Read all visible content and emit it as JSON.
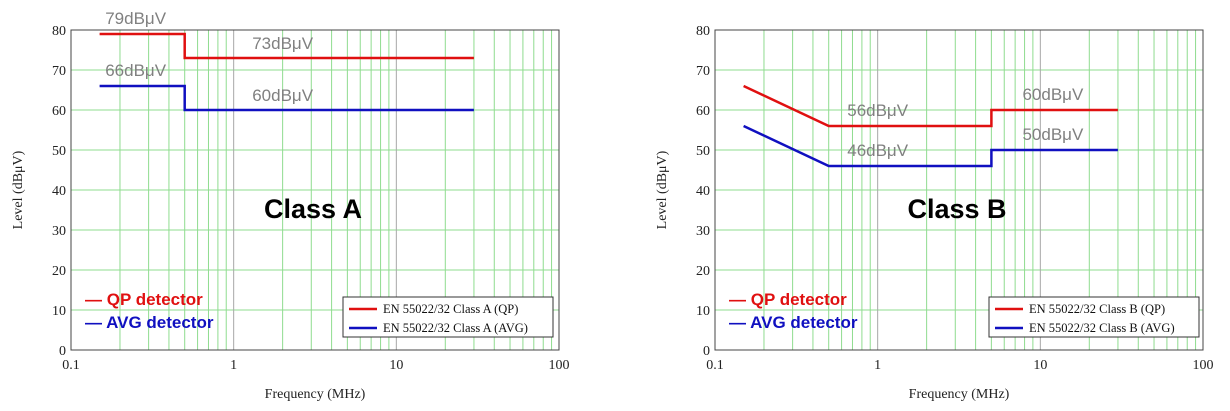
{
  "chart_data": [
    {
      "type": "line",
      "title": "",
      "big_label": "Class A",
      "xlabel": "Frequency (MHz)",
      "ylabel": "Level (dBμV)",
      "xscale": "log",
      "xlim": [
        0.1,
        100
      ],
      "ylim": [
        0,
        80
      ],
      "xticks": [
        "0.1",
        "1",
        "10",
        "100"
      ],
      "yticks": [
        "0",
        "10",
        "20",
        "30",
        "40",
        "50",
        "60",
        "70",
        "80"
      ],
      "grid": true,
      "legend_position": "bottom-right",
      "series": [
        {
          "name": "EN 55022/32 Class A (QP)",
          "color": "#e01010",
          "points": [
            [
              0.15,
              79
            ],
            [
              0.5,
              79
            ],
            [
              0.5,
              73
            ],
            [
              30,
              73
            ]
          ]
        },
        {
          "name": "EN 55022/32 Class A (AVG)",
          "color": "#1010c0",
          "points": [
            [
              0.15,
              66
            ],
            [
              0.5,
              66
            ],
            [
              0.5,
              60
            ],
            [
              30,
              60
            ]
          ]
        }
      ],
      "annotations": [
        {
          "text": "79dBμV",
          "x": 0.15,
          "y": 79
        },
        {
          "text": "73dBμV",
          "x": 2.0,
          "y": 73
        },
        {
          "text": "66dBμV",
          "x": 0.15,
          "y": 66
        },
        {
          "text": "60dBμV",
          "x": 2.0,
          "y": 60
        }
      ],
      "detectors": [
        {
          "text": "— QP detector",
          "color": "#e01010"
        },
        {
          "text": "— AVG detector",
          "color": "#1010c0"
        }
      ]
    },
    {
      "type": "line",
      "title": "",
      "big_label": "Class B",
      "xlabel": "Frequency (MHz)",
      "ylabel": "Level (dBμV)",
      "xscale": "log",
      "xlim": [
        0.1,
        100
      ],
      "ylim": [
        0,
        80
      ],
      "xticks": [
        "0.1",
        "1",
        "10",
        "100"
      ],
      "yticks": [
        "0",
        "10",
        "20",
        "30",
        "40",
        "50",
        "60",
        "70",
        "80"
      ],
      "grid": true,
      "legend_position": "bottom-right",
      "series": [
        {
          "name": "EN 55022/32 Class B (QP)",
          "color": "#e01010",
          "points": [
            [
              0.15,
              66
            ],
            [
              0.5,
              56
            ],
            [
              5,
              56
            ],
            [
              5,
              60
            ],
            [
              30,
              60
            ]
          ]
        },
        {
          "name": "EN 55022/32 Class B (AVG)",
          "color": "#1010c0",
          "points": [
            [
              0.15,
              56
            ],
            [
              0.5,
              46
            ],
            [
              5,
              46
            ],
            [
              5,
              50
            ],
            [
              30,
              50
            ]
          ]
        }
      ],
      "annotations": [
        {
          "text": "56dBμV",
          "x": 1.0,
          "y": 56
        },
        {
          "text": "60dBμV",
          "x": 9.0,
          "y": 60
        },
        {
          "text": "46dBμV",
          "x": 1.0,
          "y": 46
        },
        {
          "text": "50dBμV",
          "x": 9.0,
          "y": 50
        }
      ],
      "detectors": [
        {
          "text": "— QP detector",
          "color": "#e01010"
        },
        {
          "text": "— AVG detector",
          "color": "#1010c0"
        }
      ]
    }
  ]
}
